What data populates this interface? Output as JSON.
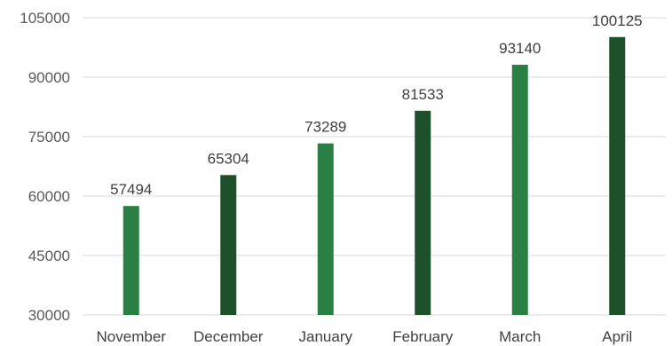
{
  "chart_data": {
    "type": "bar",
    "title": "",
    "xlabel": "",
    "ylabel": "",
    "categories": [
      "November",
      "December",
      "January",
      "February",
      "March",
      "April"
    ],
    "values": [
      57494,
      65304,
      73289,
      81533,
      93140,
      100125
    ],
    "ylim": [
      30000,
      105000
    ],
    "yticks": [
      30000,
      45000,
      60000,
      75000,
      90000,
      105000
    ],
    "grid": true,
    "data_labels": true,
    "legend": "none",
    "bar_colors": [
      "#2a8044",
      "#1d5129",
      "#2a8044",
      "#1d5129",
      "#2a8044",
      "#1d5129"
    ]
  }
}
